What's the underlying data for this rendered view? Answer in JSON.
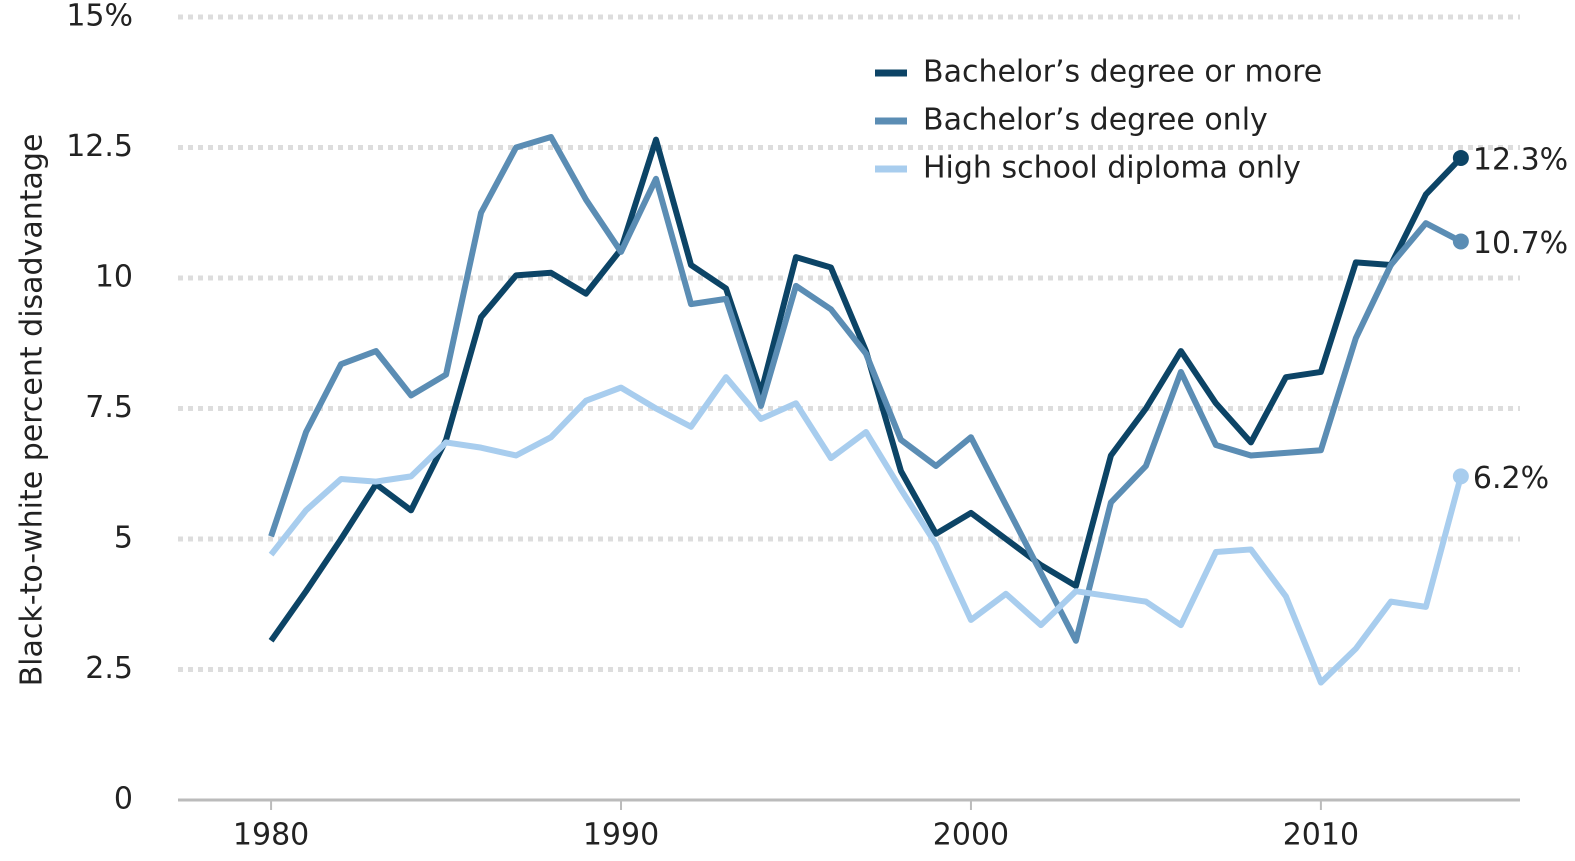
{
  "chart_data": {
    "type": "line",
    "ylabel": "Black-to-white percent disadvantage",
    "x": [
      1980,
      1981,
      1982,
      1983,
      1984,
      1985,
      1986,
      1987,
      1988,
      1989,
      1990,
      1991,
      1992,
      1993,
      1994,
      1995,
      1996,
      1997,
      1998,
      1999,
      2000,
      2001,
      2002,
      2003,
      2004,
      2005,
      2006,
      2007,
      2008,
      2009,
      2010,
      2011,
      2012,
      2013,
      2014
    ],
    "series": [
      {
        "name": "Bachelor’s degree or more",
        "color": "#0c4466",
        "values": [
          3.05,
          4.0,
          5.0,
          6.05,
          5.55,
          6.9,
          9.25,
          10.05,
          10.1,
          9.7,
          10.55,
          12.65,
          10.25,
          9.8,
          7.8,
          10.4,
          10.2,
          8.6,
          6.3,
          5.1,
          5.5,
          5.0,
          4.5,
          4.1,
          6.6,
          7.5,
          8.6,
          7.6,
          6.85,
          8.1,
          8.2,
          10.3,
          10.25,
          11.6,
          12.3
        ],
        "value_labels": [
          null,
          null,
          null,
          null,
          null,
          null,
          null,
          null,
          null,
          null,
          null,
          null,
          null,
          null,
          null,
          null,
          null,
          null,
          null,
          null,
          null,
          null,
          null,
          null,
          null,
          null,
          null,
          null,
          null,
          null,
          null,
          null,
          null,
          null,
          "12.3%"
        ]
      },
      {
        "name": "Bachelor’s degree only",
        "color": "#5b8db4",
        "values": [
          5.05,
          7.05,
          8.35,
          8.6,
          7.75,
          8.15,
          11.25,
          12.5,
          12.7,
          11.5,
          10.5,
          11.9,
          9.5,
          9.6,
          7.55,
          9.85,
          9.4,
          8.55,
          6.9,
          6.4,
          6.95,
          5.65,
          4.35,
          3.05,
          5.7,
          6.4,
          8.2,
          6.8,
          6.6,
          6.65,
          6.7,
          8.85,
          10.25,
          11.05,
          10.7
        ],
        "value_labels": [
          null,
          null,
          null,
          null,
          null,
          null,
          null,
          null,
          null,
          null,
          null,
          null,
          null,
          null,
          null,
          null,
          null,
          null,
          null,
          null,
          null,
          null,
          null,
          null,
          null,
          null,
          null,
          null,
          null,
          null,
          null,
          null,
          null,
          null,
          "10.7%"
        ]
      },
      {
        "name": "High school diploma only",
        "color": "#a8cdee",
        "values": [
          4.7,
          5.55,
          6.15,
          6.1,
          6.2,
          6.85,
          6.75,
          6.6,
          6.95,
          7.65,
          7.9,
          7.5,
          7.15,
          8.1,
          7.3,
          7.6,
          6.55,
          7.05,
          5.95,
          4.9,
          3.45,
          3.95,
          3.35,
          4.0,
          3.9,
          3.8,
          3.35,
          4.75,
          4.8,
          3.9,
          2.25,
          2.9,
          3.8,
          3.7,
          6.2
        ],
        "value_labels": [
          null,
          null,
          null,
          null,
          null,
          null,
          null,
          null,
          null,
          null,
          null,
          null,
          null,
          null,
          null,
          null,
          null,
          null,
          null,
          null,
          null,
          null,
          null,
          null,
          null,
          null,
          null,
          null,
          null,
          null,
          null,
          null,
          null,
          null,
          "6.2%"
        ]
      }
    ],
    "xlim": [
      1977.34,
      2015.69
    ],
    "xticks": [
      1980,
      1990,
      2000,
      2010
    ],
    "ylim": [
      0,
      15
    ],
    "yticks": [
      0,
      2.5,
      5,
      7.5,
      10,
      12.5,
      {
        "value": 15,
        "label": "15%"
      }
    ],
    "grid": true,
    "legend": "top-right"
  }
}
